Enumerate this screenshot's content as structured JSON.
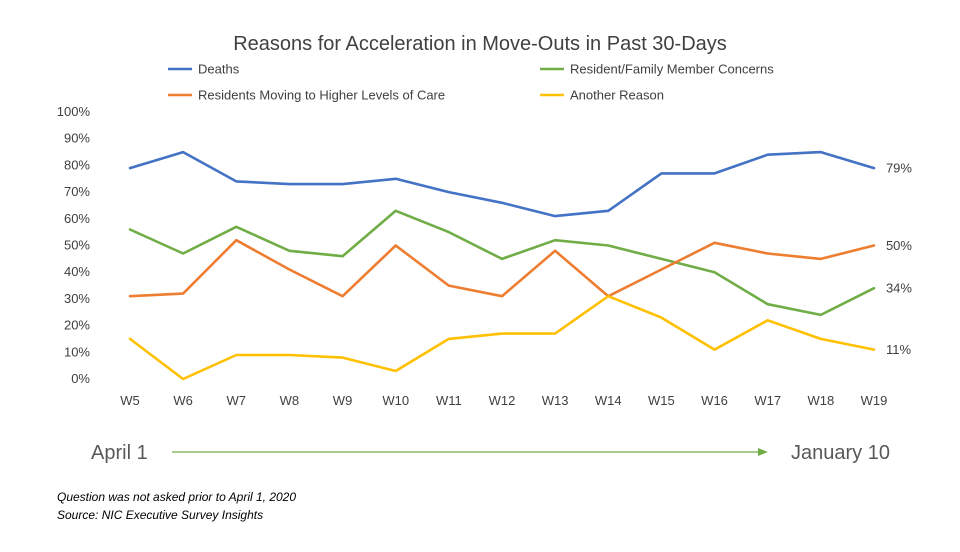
{
  "chart_data": {
    "type": "line",
    "title": "Reasons for Acceleration in Move-Outs in Past 30-Days",
    "categories": [
      "W5",
      "W6",
      "W7",
      "W8",
      "W9",
      "W10",
      "W11",
      "W12",
      "W13",
      "W14",
      "W15",
      "W16",
      "W17",
      "W18",
      "W19"
    ],
    "y_ticks": [
      "0%",
      "10%",
      "20%",
      "30%",
      "40%",
      "50%",
      "60%",
      "70%",
      "80%",
      "90%",
      "100%"
    ],
    "ylim": [
      0,
      100
    ],
    "grid": false,
    "legend_position": "top",
    "series": [
      {
        "name": "Deaths",
        "color": "#4472C4",
        "values": [
          79,
          85,
          74,
          73,
          73,
          75,
          70,
          66,
          61,
          63,
          77,
          77,
          84,
          85,
          79
        ],
        "end_label": "79%"
      },
      {
        "name": "Resident/Family Member Concerns",
        "color": "#70AD47",
        "values": [
          56,
          47,
          57,
          48,
          46,
          63,
          55,
          45,
          52,
          50,
          45,
          40,
          28,
          24,
          34
        ],
        "end_label": "34%"
      },
      {
        "name": "Residents Moving to Higher Levels of Care",
        "color": "#ED7D31",
        "values": [
          31,
          32,
          52,
          41,
          31,
          50,
          35,
          31,
          48,
          31,
          41,
          51,
          47,
          45,
          50
        ],
        "end_label": "50%"
      },
      {
        "name": "Another Reason",
        "color": "#FFC000",
        "values": [
          15,
          0,
          9,
          9,
          8,
          3,
          15,
          17,
          17,
          31,
          23,
          11,
          22,
          15,
          11
        ],
        "end_label": "11%"
      }
    ],
    "timeline": {
      "start": "April 1",
      "end": "January 10",
      "color": "#70AD47"
    }
  },
  "footnotes": {
    "line1": "Question was not asked prior to April 1, 2020",
    "line2": "Source: NIC Executive Survey Insights"
  }
}
